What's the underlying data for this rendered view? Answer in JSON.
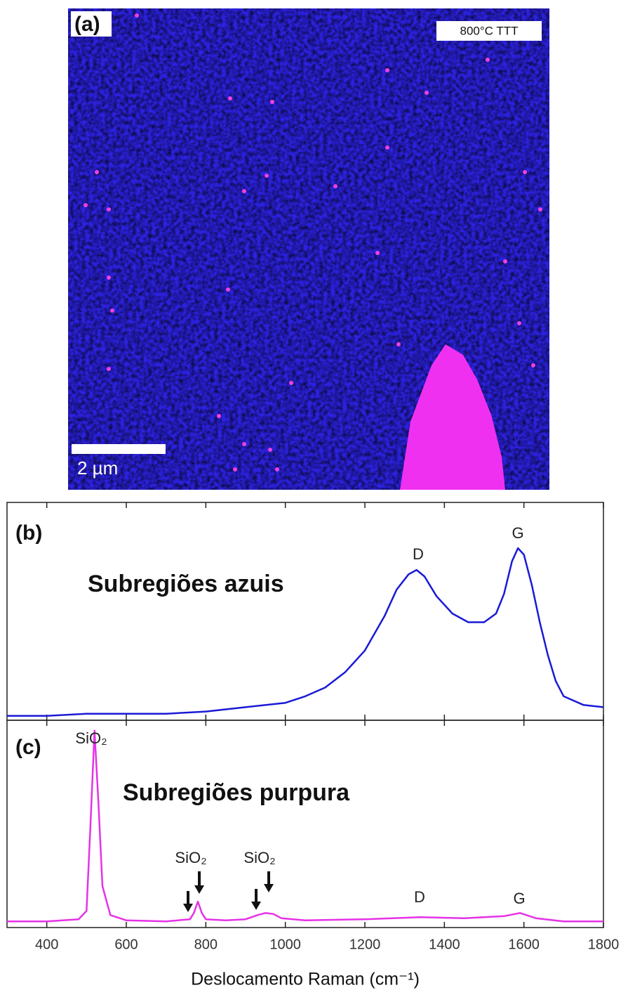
{
  "panel_a": {
    "label": "(a)",
    "tag": "800°C TTT",
    "scale_bar": "2 µm"
  },
  "chart_data": [
    {
      "type": "line",
      "panel_label": "(b)",
      "title": "Subregiões azuis",
      "x": [
        300,
        400,
        500,
        600,
        700,
        800,
        900,
        1000,
        1050,
        1100,
        1150,
        1200,
        1250,
        1280,
        1310,
        1330,
        1350,
        1380,
        1420,
        1460,
        1500,
        1530,
        1550,
        1570,
        1585,
        1600,
        1620,
        1640,
        1660,
        1680,
        1700,
        1750,
        1800
      ],
      "series": [
        {
          "color": "#1a1ad6",
          "values": [
            0.02,
            0.02,
            0.03,
            0.03,
            0.03,
            0.04,
            0.06,
            0.08,
            0.11,
            0.15,
            0.22,
            0.32,
            0.48,
            0.6,
            0.67,
            0.69,
            0.66,
            0.57,
            0.49,
            0.45,
            0.45,
            0.49,
            0.58,
            0.73,
            0.79,
            0.76,
            0.62,
            0.45,
            0.3,
            0.18,
            0.11,
            0.07,
            0.06
          ]
        }
      ],
      "xlim": [
        300,
        1800
      ],
      "ylim": [
        0,
        1
      ],
      "annotations": [
        {
          "text": "D"
        },
        {
          "text": "G"
        }
      ]
    },
    {
      "type": "line",
      "panel_label": "(c)",
      "title": "Subregiões purpura",
      "x": [
        300,
        400,
        480,
        500,
        510,
        520,
        530,
        540,
        560,
        600,
        700,
        760,
        770,
        780,
        790,
        800,
        850,
        900,
        930,
        950,
        970,
        990,
        1050,
        1200,
        1340,
        1450,
        1550,
        1590,
        1630,
        1700,
        1800
      ],
      "series": [
        {
          "color": "#e632e6",
          "values": [
            0.03,
            0.03,
            0.04,
            0.08,
            0.5,
            0.95,
            0.6,
            0.2,
            0.06,
            0.035,
            0.03,
            0.04,
            0.07,
            0.125,
            0.07,
            0.04,
            0.035,
            0.04,
            0.06,
            0.07,
            0.065,
            0.045,
            0.035,
            0.04,
            0.05,
            0.045,
            0.055,
            0.07,
            0.045,
            0.03,
            0.03
          ]
        }
      ],
      "xlim": [
        300,
        1800
      ],
      "ylim": [
        0,
        1
      ],
      "xticks": [
        400,
        600,
        800,
        1000,
        1200,
        1400,
        1600,
        1800
      ],
      "xlabel": "Deslocamento Raman (cm⁻¹)",
      "annotations": [
        {
          "text": "SiO₂"
        },
        {
          "text": "SiO₂"
        },
        {
          "text": "SiO₂"
        },
        {
          "text": "D"
        },
        {
          "text": "G"
        }
      ]
    }
  ]
}
